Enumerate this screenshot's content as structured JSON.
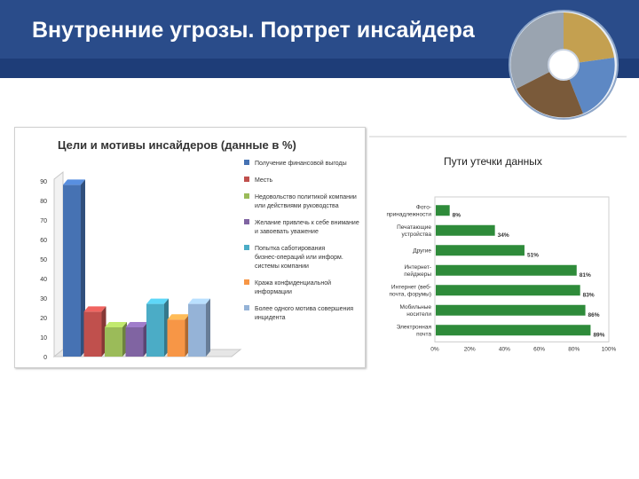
{
  "slide": {
    "title": "Внутренние угрозы. Портрет инсайдера"
  },
  "colors": {
    "header": "#2a4c8a",
    "header_strip": "#1e3d78",
    "right_bar": "#2e8b3a"
  },
  "chart_data": [
    {
      "type": "bar",
      "title": "Цели и мотивы инсайдеров (данные в %)",
      "ylim": [
        0,
        90
      ],
      "yticks": [
        0,
        10,
        20,
        30,
        40,
        50,
        60,
        70,
        80,
        90
      ],
      "grid": false,
      "legend_position": "right",
      "series": [
        {
          "name": "Получение финансовой выгоды",
          "value": 88,
          "color": "#4672b3"
        },
        {
          "name": "Месть",
          "value": 23,
          "color": "#c0504d"
        },
        {
          "name": "Недовольство политикой компании или действиями руководства",
          "value": 15,
          "color": "#9bbb59"
        },
        {
          "name": "Желание привлечь к себе внимание и завоевать уважение",
          "value": 15,
          "color": "#8064a2"
        },
        {
          "name": "Попытка саботирования бизнес-операций или информ. системы компании",
          "value": 27,
          "color": "#4bacc6"
        },
        {
          "name": "Кража конфиденциальной информации",
          "value": 19,
          "color": "#f79646"
        },
        {
          "name": "Более одного мотива совершения инцидента",
          "value": 27,
          "color": "#95b3d7"
        }
      ]
    },
    {
      "type": "bar",
      "orientation": "horizontal",
      "title": "Пути утечки данных",
      "xlim": [
        0,
        100
      ],
      "xticks": [
        "0%",
        "20%",
        "40%",
        "60%",
        "80%",
        "100%"
      ],
      "categories": [
        "Фото-принадлежности",
        "Печатающие устройства",
        "Другие",
        "Интернет-пейджеры",
        "Интернет (веб-почта, форумы)",
        "Мобильные носители",
        "Электронная почта"
      ],
      "values": [
        8,
        34,
        51,
        81,
        83,
        86,
        89
      ],
      "value_labels": [
        "8%",
        "34%",
        "51%",
        "81%",
        "83%",
        "86%",
        "89%"
      ]
    }
  ]
}
